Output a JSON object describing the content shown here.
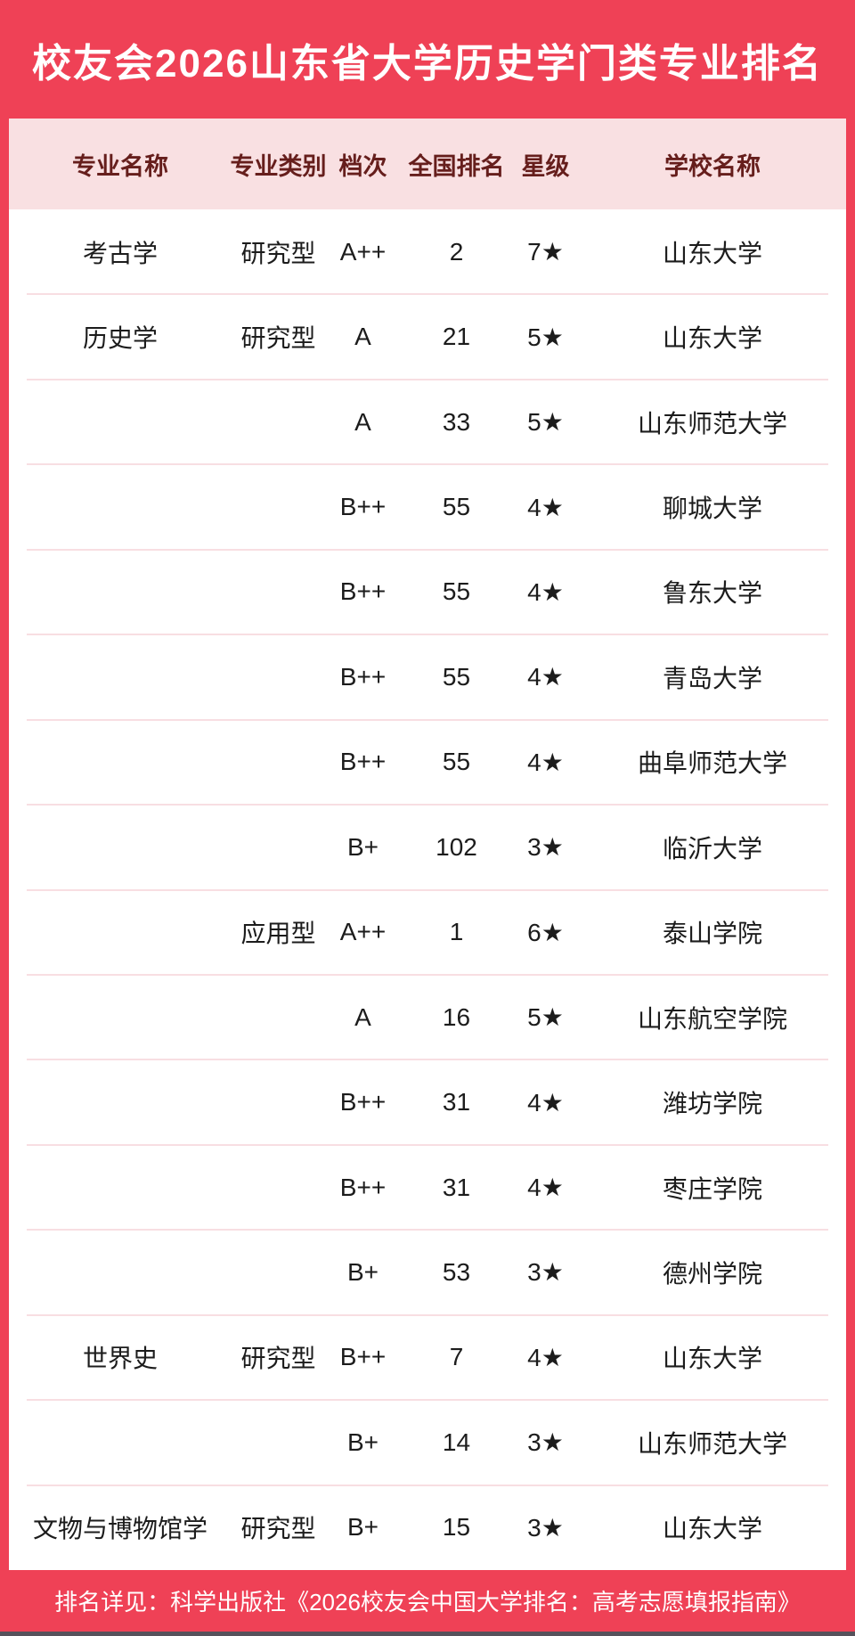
{
  "chart_data": {
    "type": "table",
    "title": "校友会2026山东省大学历史学门类专业排名",
    "columns": [
      "专业名称",
      "专业类别",
      "档次",
      "全国排名",
      "星级",
      "学校名称"
    ],
    "rows": [
      {
        "major": "考古学",
        "type": "研究型",
        "grade": "A++",
        "rank": "2",
        "stars": "7★",
        "school": "山东大学"
      },
      {
        "major": "历史学",
        "type": "研究型",
        "grade": "A",
        "rank": "21",
        "stars": "5★",
        "school": "山东大学"
      },
      {
        "major": "",
        "type": "",
        "grade": "A",
        "rank": "33",
        "stars": "5★",
        "school": "山东师范大学"
      },
      {
        "major": "",
        "type": "",
        "grade": "B++",
        "rank": "55",
        "stars": "4★",
        "school": "聊城大学"
      },
      {
        "major": "",
        "type": "",
        "grade": "B++",
        "rank": "55",
        "stars": "4★",
        "school": "鲁东大学"
      },
      {
        "major": "",
        "type": "",
        "grade": "B++",
        "rank": "55",
        "stars": "4★",
        "school": "青岛大学"
      },
      {
        "major": "",
        "type": "",
        "grade": "B++",
        "rank": "55",
        "stars": "4★",
        "school": "曲阜师范大学"
      },
      {
        "major": "",
        "type": "",
        "grade": "B+",
        "rank": "102",
        "stars": "3★",
        "school": "临沂大学"
      },
      {
        "major": "",
        "type": "应用型",
        "grade": "A++",
        "rank": "1",
        "stars": "6★",
        "school": "泰山学院"
      },
      {
        "major": "",
        "type": "",
        "grade": "A",
        "rank": "16",
        "stars": "5★",
        "school": "山东航空学院"
      },
      {
        "major": "",
        "type": "",
        "grade": "B++",
        "rank": "31",
        "stars": "4★",
        "school": "潍坊学院"
      },
      {
        "major": "",
        "type": "",
        "grade": "B++",
        "rank": "31",
        "stars": "4★",
        "school": "枣庄学院"
      },
      {
        "major": "",
        "type": "",
        "grade": "B+",
        "rank": "53",
        "stars": "3★",
        "school": "德州学院"
      },
      {
        "major": "世界史",
        "type": "研究型",
        "grade": "B++",
        "rank": "7",
        "stars": "4★",
        "school": "山东大学"
      },
      {
        "major": "",
        "type": "",
        "grade": "B+",
        "rank": "14",
        "stars": "3★",
        "school": "山东师范大学"
      },
      {
        "major": "文物与博物馆学",
        "type": "研究型",
        "grade": "B+",
        "rank": "15",
        "stars": "3★",
        "school": "山东大学"
      }
    ],
    "legend_position": "none",
    "grid": "horizontal-dividers"
  },
  "footer": {
    "text": "排名详见：科学出版社《2026校友会中国大学排名：高考志愿填报指南》"
  },
  "colors": {
    "accent_red": "#ef4156",
    "header_band_pink": "#f9e0e2",
    "header_text_maroon": "#661e1c",
    "row_divider_pink": "#f8dee2",
    "body_text_black": "#1c1c1c",
    "title_text_white": "#ffffff",
    "bottom_strip_gray": "#56525b"
  }
}
